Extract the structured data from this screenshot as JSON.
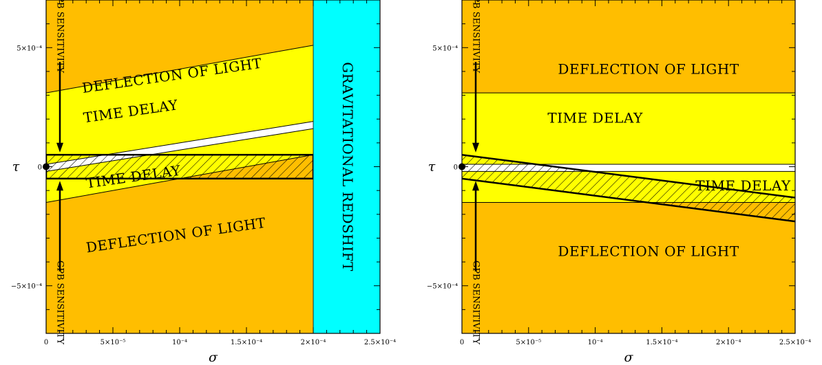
{
  "colors": {
    "deflection_region": "#ffbe00",
    "time_delay_region": "#ffff00",
    "allowed_region": "#ffffff",
    "redshift_region": "#00ffff",
    "hatch": "#000000"
  },
  "chart_data": [
    {
      "type": "area",
      "xlabel": "σ",
      "ylabel": "τ",
      "xlim": [
        0,
        0.00025
      ],
      "ylim": [
        -0.0007,
        0.0007
      ],
      "x_ticks": [
        {
          "value": 0,
          "label": "0"
        },
        {
          "value": 5e-05,
          "label": "5×10⁻⁵"
        },
        {
          "value": 0.0001,
          "label": "10⁻⁴"
        },
        {
          "value": 0.00015,
          "label": "1.5×10⁻⁴"
        },
        {
          "value": 0.0002,
          "label": "2×10⁻⁴"
        },
        {
          "value": 0.00025,
          "label": "2.5×10⁻⁴"
        }
      ],
      "y_ticks": [
        {
          "value": 0.0005,
          "label": "5×10⁻⁴"
        },
        {
          "value": 0,
          "label": "0"
        },
        {
          "value": -0.0005,
          "label": "−5×10⁻⁴"
        }
      ],
      "boundaries": {
        "deflection_upper": [
          [
            0,
            0.00031
          ],
          [
            0.0002,
            0.00051
          ]
        ],
        "deflection_lower": [
          [
            0,
            -0.00015
          ],
          [
            0.0002,
            5e-05
          ]
        ],
        "time_delay_upper": [
          [
            0,
            1e-05
          ],
          [
            0.0002,
            0.00019
          ]
        ],
        "time_delay_lower": [
          [
            0,
            -2e-05
          ],
          [
            0.0002,
            0.00016
          ]
        ],
        "gpb_band": [
          -5e-05,
          5e-05
        ]
      },
      "redshift_sigma_limit": 0.0002,
      "point": [
        0,
        0
      ],
      "labels": {
        "deflection_top": "DEFLECTION OF LIGHT",
        "time_delay_top": "TIME DELAY",
        "time_delay_bottom": "TIME DELAY",
        "deflection_bottom": "DEFLECTION OF LIGHT",
        "redshift": "GRAVITATIONAL REDSHIFT",
        "gpb_top": "GPB SENSITIVITY",
        "gpb_bottom": "GPB SENSITIVITY"
      }
    },
    {
      "type": "area",
      "xlabel": "σ",
      "ylabel": "τ",
      "xlim": [
        0,
        0.00025
      ],
      "ylim": [
        -0.0007,
        0.0007
      ],
      "x_ticks": [
        {
          "value": 0,
          "label": "0"
        },
        {
          "value": 5e-05,
          "label": "5×10⁻⁵"
        },
        {
          "value": 0.0001,
          "label": "10⁻⁴"
        },
        {
          "value": 0.00015,
          "label": "1.5×10⁻⁴"
        },
        {
          "value": 0.0002,
          "label": "2×10⁻⁴"
        },
        {
          "value": 0.00025,
          "label": "2.5×10⁻⁴"
        }
      ],
      "y_ticks": [
        {
          "value": 0.0005,
          "label": "5×10⁻⁴"
        },
        {
          "value": 0,
          "label": "0"
        },
        {
          "value": -0.0005,
          "label": "−5×10⁻⁴"
        }
      ],
      "boundaries": {
        "deflection_upper": 0.00031,
        "deflection_lower": -0.00015,
        "time_delay_upper": 1e-05,
        "time_delay_lower": -2e-05,
        "gpb_band_upper": [
          [
            0,
            5e-05
          ],
          [
            0.00025,
            -0.00013
          ]
        ],
        "gpb_band_lower": [
          [
            0,
            -5e-05
          ],
          [
            0.00025,
            -0.00023
          ]
        ]
      },
      "point": [
        0,
        0
      ],
      "labels": {
        "deflection_top": "DEFLECTION OF LIGHT",
        "time_delay_top": "TIME DELAY",
        "time_delay_bottom": "TIME DELAY",
        "deflection_bottom": "DEFLECTION OF LIGHT",
        "gpb_top": "GPB SENSITIVITY",
        "gpb_bottom": "GPB SENSITIVITY"
      }
    }
  ]
}
